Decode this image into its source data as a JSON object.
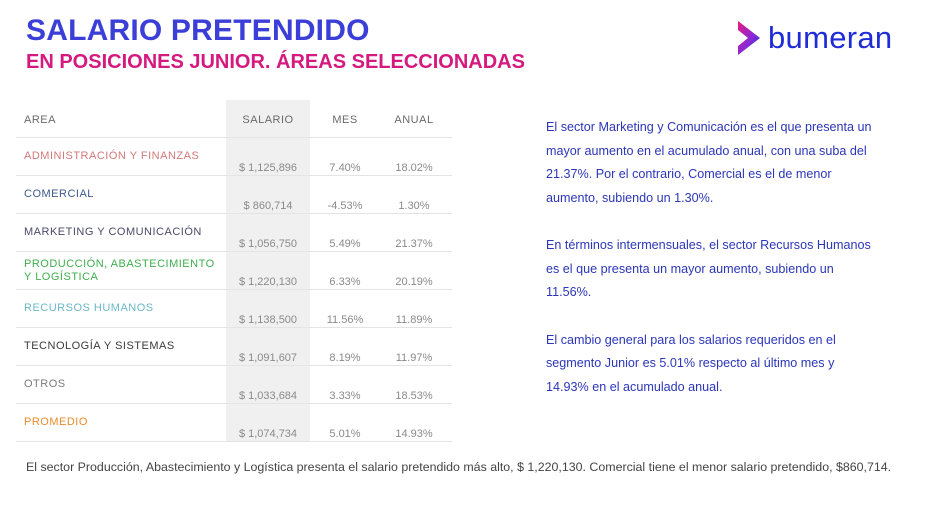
{
  "header": {
    "title": "SALARIO PRETENDIDO",
    "subtitle": "EN POSICIONES JUNIOR. ÁREAS SELECCIONADAS"
  },
  "logo": {
    "text": "bumeran",
    "icon": "bumeran-chevron-icon",
    "color_primary": "#1f2bd6",
    "color_accent": "#e5197f"
  },
  "table": {
    "columns": {
      "area": "AREA",
      "salario": "SALARIO",
      "mes": "MES",
      "anual": "ANUAL"
    },
    "rows": [
      {
        "area": "ADMINISTRACIÓN Y FINANZAS",
        "salario": "$ 1,125,896",
        "mes": "7.40%",
        "anual": "18.02%",
        "color": "#d2797a"
      },
      {
        "area": "COMERCIAL",
        "salario": "$ 860,714",
        "mes": "-4.53%",
        "anual": "1.30%",
        "color": "#3d5a8c"
      },
      {
        "area": "MARKETING Y COMUNICACIÓN",
        "salario": "$ 1,056,750",
        "mes": "5.49%",
        "anual": "21.37%",
        "color": "#4a4a6a"
      },
      {
        "area": "PRODUCCIÓN, ABASTECIMIENTO Y LOGÍSTICA",
        "salario": "$ 1,220,130",
        "mes": "6.33%",
        "anual": "20.19%",
        "color": "#3fae4f"
      },
      {
        "area": "RECURSOS HUMANOS",
        "salario": "$ 1,138,500",
        "mes": "11.56%",
        "anual": "11.89%",
        "color": "#6ab8c6"
      },
      {
        "area": "TECNOLOGÍA Y SISTEMAS",
        "salario": "$ 1,091,607",
        "mes": "8.19%",
        "anual": "11.97%",
        "color": "#3a3a3a"
      },
      {
        "area": "OTROS",
        "salario": "$ 1,033,684",
        "mes": "3.33%",
        "anual": "18.53%",
        "color": "#7a7a7a"
      },
      {
        "area": "PROMEDIO",
        "salario": "$ 1,074,734",
        "mes": "5.01%",
        "anual": "14.93%",
        "color": "#e98a2a"
      }
    ]
  },
  "side_text": {
    "p1": "El sector Marketing y Comunicación es el que presenta un mayor aumento en el acumulado anual, con una suba del 21.37%. Por el contrario, Comercial es el de menor aumento, subiendo un 1.30%.",
    "p2": "En términos intermensuales, el sector Recursos Humanos es el que presenta un mayor aumento, subiendo un 11.56%.",
    "p3": "El cambio general para los salarios requeridos en el segmento Junior es 5.01% respecto al último mes y 14.93% en el acumulado anual."
  },
  "footer": {
    "text": "El sector Producción, Abastecimiento y Logística presenta el salario pretendido más alto, $ 1,220,130. Comercial tiene el menor salario pretendido, $860,714."
  }
}
